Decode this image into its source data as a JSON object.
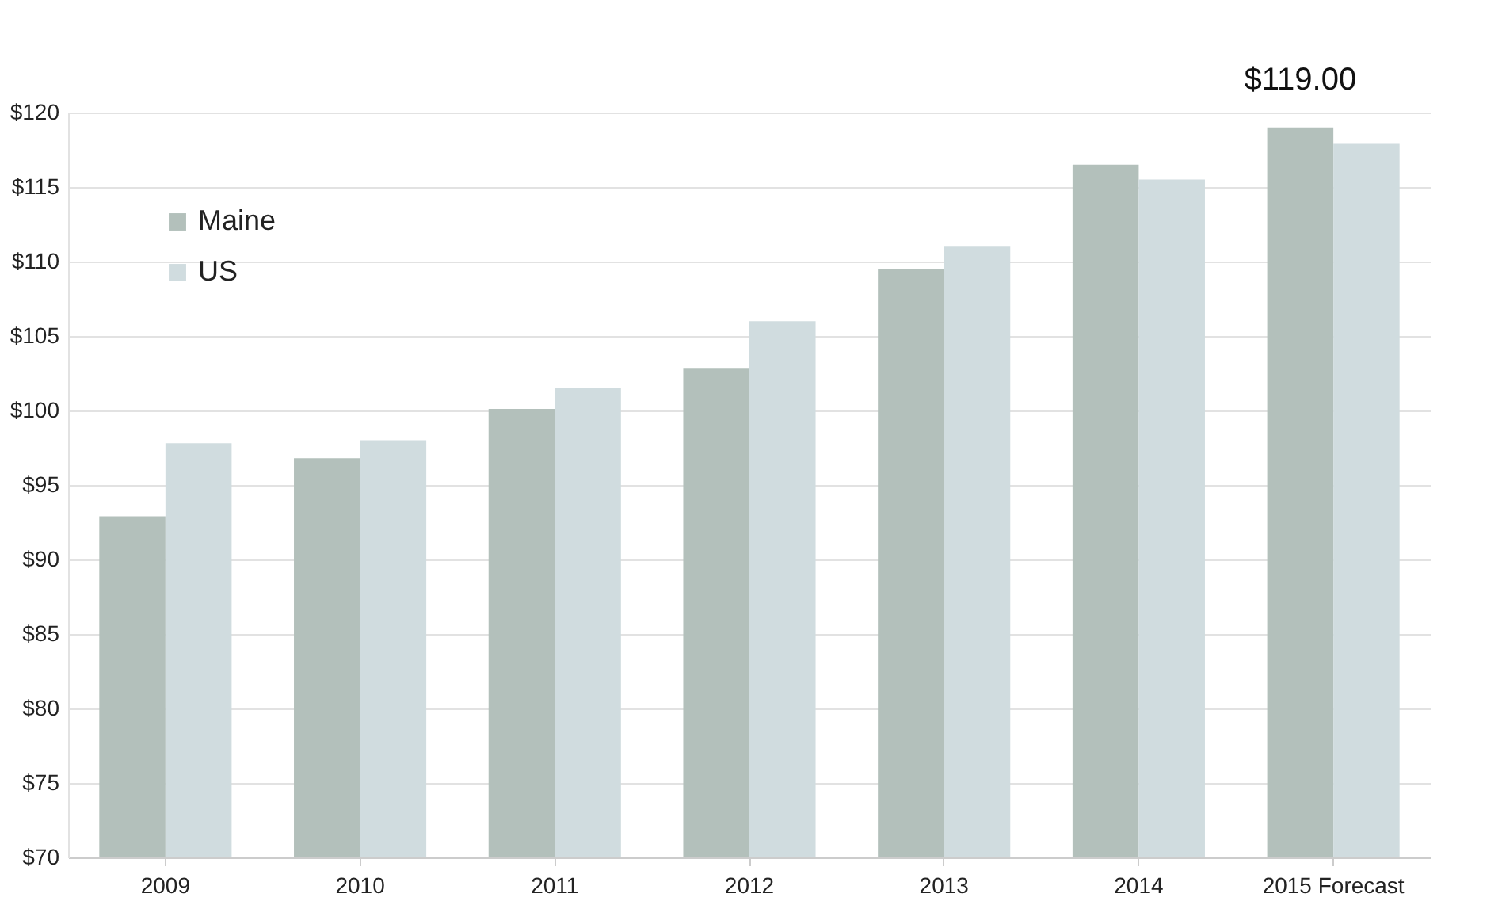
{
  "chart_data": {
    "type": "bar",
    "categories": [
      "2009",
      "2010",
      "2011",
      "2012",
      "2013",
      "2014",
      "2015 Forecast"
    ],
    "series": [
      {
        "name": "Maine",
        "color": "#b3c0bb",
        "values": [
          92.9,
          96.8,
          100.1,
          102.8,
          109.5,
          116.5,
          119
        ]
      },
      {
        "name": "US",
        "color": "#d0dcdf",
        "values": [
          97.8,
          98,
          101.5,
          106,
          111,
          115.5,
          117.9
        ]
      }
    ],
    "ylim": [
      70,
      120
    ],
    "yticks": [
      {
        "value": 70,
        "label": "$70"
      },
      {
        "value": 75,
        "label": "$75"
      },
      {
        "value": 80,
        "label": "$80"
      },
      {
        "value": 85,
        "label": "$85"
      },
      {
        "value": 90,
        "label": "$90"
      },
      {
        "value": 95,
        "label": "$95"
      },
      {
        "value": 100,
        "label": "$100"
      },
      {
        "value": 105,
        "label": "$105"
      },
      {
        "value": 110,
        "label": "$110"
      },
      {
        "value": 115,
        "label": "$115"
      },
      {
        "value": 120,
        "label": "$120"
      }
    ],
    "annotations": [
      {
        "text": "$119.00",
        "x": "2015 Forecast",
        "y": 119
      }
    ],
    "grid": "y",
    "legend": "top left"
  }
}
